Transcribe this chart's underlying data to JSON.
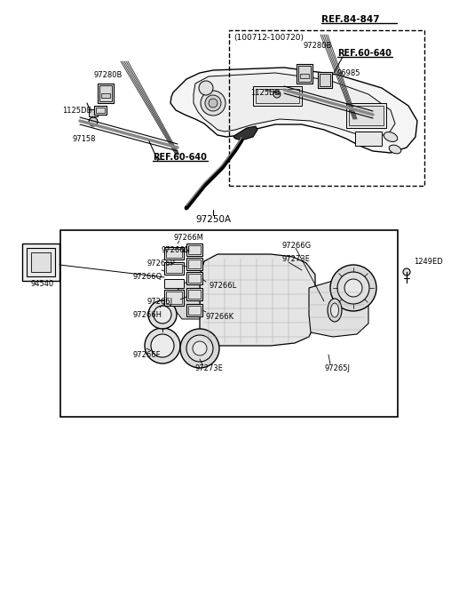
{
  "bg_color": "#ffffff",
  "line_color": "#000000",
  "text_color": "#000000",
  "gray_fill": "#d0d0d0",
  "light_gray": "#e8e8e8",
  "annotations": {
    "ref_84_847": "REF.84-847",
    "part_97250A": "97250A",
    "part_97273E_top": "97273E",
    "part_97266F": "97266F",
    "part_97265J": "97265J",
    "part_97266H": "97266H",
    "part_97266J": "97266J",
    "part_97266K": "97266K",
    "part_97266L": "97266L",
    "part_97266Q": "97266Q",
    "part_97266P": "97266P",
    "part_97266N": "97266N",
    "part_97266M": "97266M",
    "part_97273E_bot": "97273E",
    "part_97266G": "97266G",
    "part_94540": "94540",
    "part_1249ED": "1249ED",
    "part_97158": "97158",
    "part_1125DB_L": "1125DB",
    "part_97280B_L": "97280B",
    "ref_60_640_L": "REF.60-640",
    "date_range": "(100712-100720)",
    "ref_60_640_R": "REF.60-640",
    "part_1125DB_R": "1125DB",
    "part_96985": "96985",
    "part_97280B_R": "97280B"
  },
  "fs": 6.0,
  "fs_ref": 7.0,
  "fs_label": 7.5
}
